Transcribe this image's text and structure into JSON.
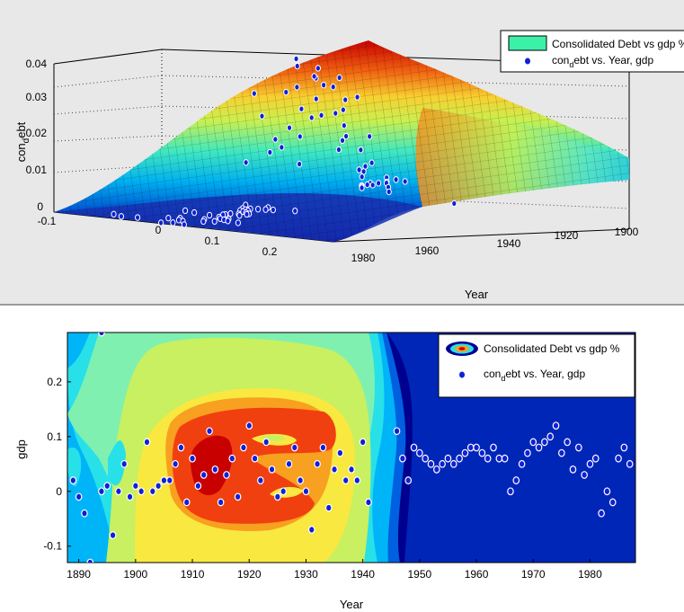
{
  "top_chart": {
    "type": "surface",
    "ylabel_main": "con",
    "ylabel_sub": "d",
    "ylabel_rest": "ebt",
    "xlabel": "Year",
    "z_ticks": [
      "0",
      "0.01",
      "0.02",
      "0.03",
      "0.04"
    ],
    "gdp_ticks": [
      "-0.1",
      "0",
      "0.1",
      "0.2"
    ],
    "year_ticks": [
      "1980",
      "1960",
      "1940",
      "1920",
      "1900"
    ],
    "legend": {
      "item1": "Consolidated Debt vs gdp %",
      "item2_main": "con",
      "item2_sub": "d",
      "item2_rest": "ebt vs. Year, gdp"
    }
  },
  "bottom_chart": {
    "type": "contour",
    "ylabel": "gdp",
    "xlabel": "Year",
    "x_ticks": [
      "1890",
      "1900",
      "1910",
      "1920",
      "1930",
      "1940",
      "1950",
      "1960",
      "1970",
      "1980"
    ],
    "y_ticks": [
      "0.2",
      "0.1",
      "0",
      "-0.1"
    ],
    "xlim": [
      1888,
      1988
    ],
    "ylim": [
      -0.13,
      0.29
    ],
    "legend": {
      "item1": "Consolidated Debt vs gdp %",
      "item2_main": "con",
      "item2_sub": "d",
      "item2_rest": "ebt vs. Year, gdp"
    }
  },
  "chart_data": [
    {
      "type": "scatter",
      "xlabel": "Year",
      "ylabel": "gdp",
      "xlim": [
        1888,
        1988
      ],
      "ylim": [
        -0.13,
        0.29
      ],
      "series": [
        {
          "name": "condebt vs. Year, gdp",
          "points": [
            [
              1889,
              0.02
            ],
            [
              1890,
              -0.01
            ],
            [
              1891,
              -0.04
            ],
            [
              1892,
              -0.13
            ],
            [
              1894,
              0.29
            ],
            [
              1894,
              0.0
            ],
            [
              1895,
              0.01
            ],
            [
              1896,
              -0.08
            ],
            [
              1897,
              0.0
            ],
            [
              1898,
              0.05
            ],
            [
              1899,
              -0.01
            ],
            [
              1900,
              0.01
            ],
            [
              1901,
              0.0
            ],
            [
              1902,
              0.09
            ],
            [
              1903,
              0.0
            ],
            [
              1904,
              0.01
            ],
            [
              1905,
              0.02
            ],
            [
              1906,
              0.02
            ],
            [
              1907,
              0.05
            ],
            [
              1908,
              0.08
            ],
            [
              1909,
              -0.02
            ],
            [
              1910,
              0.06
            ],
            [
              1911,
              0.01
            ],
            [
              1912,
              0.03
            ],
            [
              1913,
              0.11
            ],
            [
              1914,
              0.04
            ],
            [
              1915,
              -0.02
            ],
            [
              1916,
              0.03
            ],
            [
              1917,
              0.06
            ],
            [
              1918,
              -0.01
            ],
            [
              1919,
              0.08
            ],
            [
              1920,
              0.12
            ],
            [
              1921,
              0.06
            ],
            [
              1922,
              0.02
            ],
            [
              1923,
              0.09
            ],
            [
              1924,
              0.04
            ],
            [
              1925,
              -0.01
            ],
            [
              1926,
              0.0
            ],
            [
              1927,
              0.05
            ],
            [
              1928,
              0.08
            ],
            [
              1929,
              0.02
            ],
            [
              1930,
              0.0
            ],
            [
              1931,
              -0.07
            ],
            [
              1932,
              0.05
            ],
            [
              1933,
              0.08
            ],
            [
              1934,
              -0.03
            ],
            [
              1935,
              0.04
            ],
            [
              1936,
              0.07
            ],
            [
              1937,
              0.02
            ],
            [
              1938,
              0.04
            ],
            [
              1939,
              0.02
            ],
            [
              1940,
              0.09
            ],
            [
              1941,
              -0.02
            ],
            [
              1946,
              0.11
            ],
            [
              1947,
              0.06
            ],
            [
              1948,
              0.02
            ],
            [
              1949,
              0.08
            ],
            [
              1950,
              0.07
            ],
            [
              1951,
              0.06
            ],
            [
              1952,
              0.05
            ],
            [
              1953,
              0.04
            ],
            [
              1954,
              0.05
            ],
            [
              1955,
              0.06
            ],
            [
              1956,
              0.05
            ],
            [
              1957,
              0.06
            ],
            [
              1958,
              0.07
            ],
            [
              1959,
              0.08
            ],
            [
              1960,
              0.08
            ],
            [
              1961,
              0.07
            ],
            [
              1962,
              0.06
            ],
            [
              1963,
              0.08
            ],
            [
              1964,
              0.06
            ],
            [
              1965,
              0.06
            ],
            [
              1966,
              0.0
            ],
            [
              1967,
              0.02
            ],
            [
              1968,
              0.05
            ],
            [
              1969,
              0.07
            ],
            [
              1970,
              0.09
            ],
            [
              1971,
              0.08
            ],
            [
              1972,
              0.09
            ],
            [
              1973,
              0.1
            ],
            [
              1974,
              0.12
            ],
            [
              1975,
              0.07
            ],
            [
              1976,
              0.09
            ],
            [
              1977,
              0.04
            ],
            [
              1978,
              0.08
            ],
            [
              1979,
              0.03
            ],
            [
              1980,
              0.05
            ],
            [
              1981,
              0.06
            ],
            [
              1982,
              -0.04
            ],
            [
              1983,
              0.0
            ],
            [
              1984,
              -0.02
            ],
            [
              1985,
              0.06
            ],
            [
              1986,
              0.08
            ],
            [
              1987,
              0.05
            ]
          ]
        }
      ]
    }
  ],
  "colors": {
    "legend_patch": "#3cf0a8",
    "marker_fill": "#1020d8",
    "marker_edge": "#ffffff",
    "contour_levels": [
      "#00008f",
      "#0033cc",
      "#0077ee",
      "#00b4f8",
      "#28e0e8",
      "#80f0b0",
      "#c8f060",
      "#f8e840",
      "#f8a020",
      "#f04010",
      "#c80000"
    ]
  }
}
